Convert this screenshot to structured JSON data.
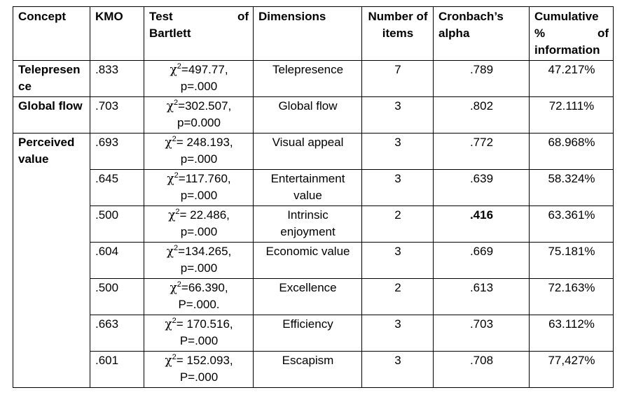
{
  "headers": {
    "concept": "Concept",
    "kmo": "KMO",
    "bartlett_1": "Test of",
    "bartlett_2": "Bartlett",
    "dimensions": "Dimensions",
    "items": "Number of items",
    "alpha": "Cronbach’s alpha",
    "cumulative": "Cumulative % of information"
  },
  "concepts": {
    "telepresence": "Telepresence",
    "global_flow": "Global flow",
    "perceived_value": "Perceived value"
  },
  "chi_symbol": "χ",
  "chi_sup": "2",
  "rows": [
    {
      "kmo": ".833",
      "chi_value": "=497.77,",
      "p_value": "p=.000",
      "dimension": "Telepresence",
      "items": "7",
      "alpha": ".789",
      "cumulative": "47.217%"
    },
    {
      "kmo": ".703",
      "chi_value": "=302.507,",
      "p_value": "p=0.000",
      "dimension": "Global flow",
      "items": "3",
      "alpha": ".802",
      "cumulative": "72.111%"
    },
    {
      "kmo": ".693",
      "chi_value": "= 248.193,",
      "p_value": "p=.000",
      "dimension": "Visual appeal",
      "items": "3",
      "alpha": ".772",
      "cumulative": "68.968%"
    },
    {
      "kmo": ".645",
      "chi_value": "=117.760,",
      "p_value": "p=.000",
      "dimension": "Entertainment value",
      "items": "3",
      "alpha": ".639",
      "cumulative": "58.324%"
    },
    {
      "kmo": ".500",
      "chi_value": "= 22.486,",
      "p_value": "p=.000",
      "dimension": "Intrinsic enjoyment",
      "items": "2",
      "alpha": ".416",
      "cumulative": "63.361%"
    },
    {
      "kmo": ".604",
      "chi_value": "=134.265,",
      "p_value": "p=.000",
      "dimension": "Economic value",
      "items": "3",
      "alpha": ".669",
      "cumulative": "75.181%"
    },
    {
      "kmo": ".500",
      "chi_value": "=66.390,",
      "p_value": "P=.000.",
      "dimension": "Excellence",
      "items": "2",
      "alpha": ".613",
      "cumulative": "72.163%"
    },
    {
      "kmo": ".663",
      "chi_value": "= 170.516,",
      "p_value": "P=.000",
      "dimension": "Efficiency",
      "items": "3",
      "alpha": ".703",
      "cumulative": "63.112%"
    },
    {
      "kmo": ".601",
      "chi_value": "= 152.093,",
      "p_value": "P=.000",
      "dimension": "Escapism",
      "items": "3",
      "alpha": ".708",
      "cumulative": "77,427%"
    }
  ]
}
